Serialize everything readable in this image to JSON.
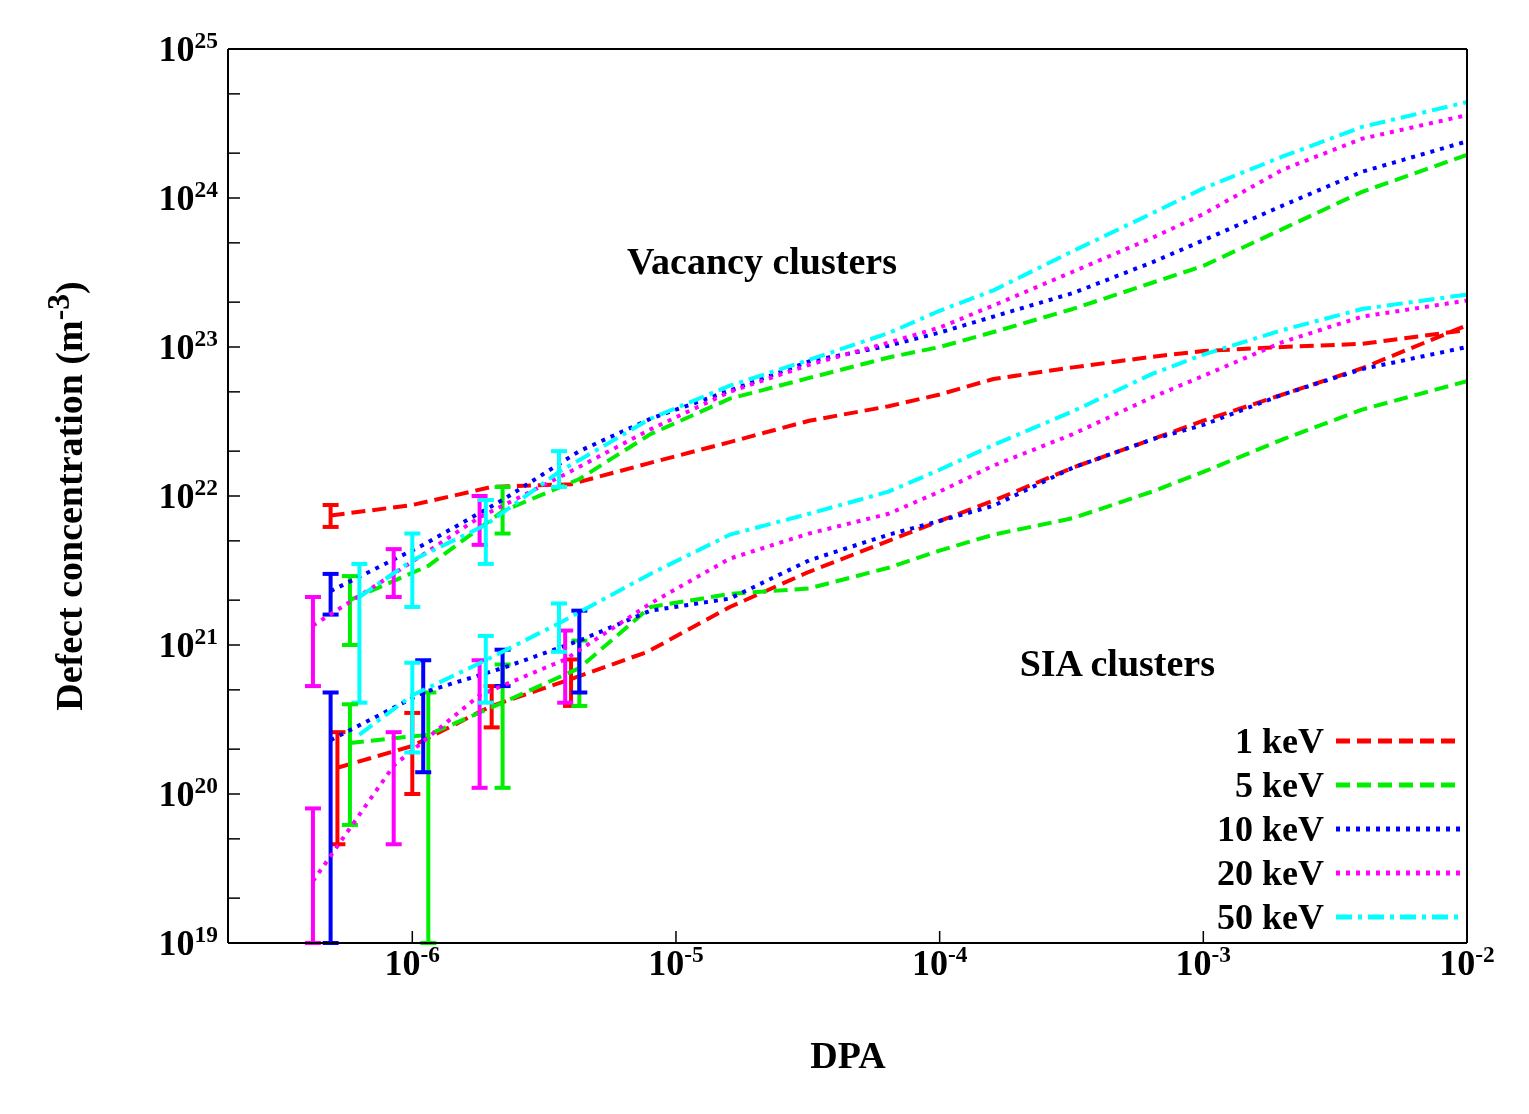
{
  "chart_data": {
    "type": "line",
    "xlabel": "DPA",
    "ylabel": "Defect concentration (m$^{-3}$)",
    "log": "xy",
    "grid": false,
    "legend": "bottom right",
    "xlim": [
      2e-07,
      0.01
    ],
    "xticks": [
      {
        "value": 1e-06,
        "label": "10$^{-6}$"
      },
      {
        "value": 1e-05,
        "label": "10$^{-5}$"
      },
      {
        "value": 0.0001,
        "label": "10$^{-4}$"
      },
      {
        "value": 0.001,
        "label": "10$^{-3}$"
      },
      {
        "value": 0.01,
        "label": "10$^{-2}$"
      }
    ],
    "ylim": [
      1e+19,
      1e+25
    ],
    "yticks": [
      {
        "value": 1e+19,
        "label": "10$^{19}$"
      },
      {
        "value": 2e+19,
        "label": null
      },
      {
        "value": 5e+19,
        "label": null
      },
      {
        "value": 1e+20,
        "label": "10$^{20}$"
      },
      {
        "value": 2e+20,
        "label": null
      },
      {
        "value": 5e+20,
        "label": null
      },
      {
        "value": 1e+21,
        "label": "10$^{21}$"
      },
      {
        "value": 2e+21,
        "label": null
      },
      {
        "value": 5e+21,
        "label": null
      },
      {
        "value": 1e+22,
        "label": "10$^{22}$"
      },
      {
        "value": 2e+22,
        "label": null
      },
      {
        "value": 5e+22,
        "label": null
      },
      {
        "value": 1e+23,
        "label": "10$^{23}$"
      },
      {
        "value": 2e+23,
        "label": null
      },
      {
        "value": 5e+23,
        "label": null
      },
      {
        "value": 1e+24,
        "label": "10$^{24}$"
      },
      {
        "value": 2e+24,
        "label": null
      },
      {
        "value": 5e+24,
        "label": null
      },
      {
        "value": 1e+25,
        "label": "10$^{25}$"
      }
    ],
    "annotations": [
      "Vacancy clusters",
      "SIA clusters"
    ],
    "series": [
      {
        "name": "1 keV",
        "color": "#ff0000",
        "line_style": "dashed",
        "x": [
          4.9e-07,
          1e-06,
          2e-06,
          4e-06,
          7.8e-06,
          1.6e-05,
          3.2e-05,
          6.4e-05,
          0.0001,
          0.00016,
          0.00032,
          0.00064,
          0.001,
          0.002,
          0.004,
          0.01
        ],
        "values": [
          7.4e+21,
          8.7e+21,
          1.15e+22,
          1.2e+22,
          1.65e+22,
          2.3e+22,
          3.2e+22,
          4e+22,
          4.8e+22,
          6.1e+22,
          7.3e+22,
          8.6e+22,
          9.4e+22,
          1e+23,
          1.05e+23,
          1.3e+23
        ],
        "errors": [
          [
            6.2e+21,
            8.7e+21
          ],
          null,
          null,
          null,
          null,
          null,
          null,
          null,
          null,
          null,
          null,
          null,
          null,
          null,
          null,
          null
        ]
      },
      {
        "name": "5 keV",
        "color": "#00ee00",
        "line_style": "dashed",
        "x": [
          5.8e-07,
          1.15e-06,
          2.2e-06,
          4.3e-06,
          8e-06,
          1.6e-05,
          3.2e-05,
          6.4e-05,
          0.0001,
          0.00016,
          0.00032,
          0.00064,
          0.001,
          0.002,
          0.004,
          0.01
        ],
        "values": [
          2e+21,
          3.4e+21,
          7.9e+21,
          1.3e+22,
          2.6e+22,
          4.5e+22,
          6.2e+22,
          8.5e+22,
          1e+23,
          1.26e+23,
          1.8e+23,
          2.7e+23,
          3.5e+23,
          6.2e+23,
          1.1e+24,
          1.95e+24
        ],
        "errors": [
          [
            1e+21,
            2.9e+21
          ],
          null,
          [
            5.6e+21,
            1.15e+22
          ],
          null,
          null,
          null,
          null,
          null,
          null,
          null,
          null,
          null,
          null,
          null,
          null,
          null
        ]
      },
      {
        "name": "10 keV",
        "color": "#0000ff",
        "line_style": "dotted",
        "x": [
          4.9e-07,
          1.1e-06,
          2.2e-06,
          4.3e-06,
          8e-06,
          1.6e-05,
          3.2e-05,
          6.4e-05,
          0.0001,
          0.00016,
          0.00032,
          0.00064,
          0.001,
          0.002,
          0.004,
          0.01
        ],
        "values": [
          2.3e+21,
          4.7e+21,
          9.4e+21,
          2e+22,
          3.3e+22,
          5.1e+22,
          8e+22,
          1.02e+23,
          1.25e+23,
          1.6e+23,
          2.3e+23,
          3.7e+23,
          5.2e+23,
          8.9e+23,
          1.5e+24,
          2.4e+24
        ],
        "errors": [
          [
            1.6e+21,
            3e+21
          ],
          null,
          null,
          null,
          null,
          null,
          null,
          null,
          null,
          null,
          null,
          null,
          null,
          null,
          null,
          null
        ]
      },
      {
        "name": "20 keV",
        "color": "#ff00ff",
        "line_style": "dotted",
        "x": [
          4.2e-07,
          8.5e-07,
          1.8e-06,
          3.8e-06,
          8e-06,
          1.6e-05,
          3.2e-05,
          6.4e-05,
          0.0001,
          0.00016,
          0.00032,
          0.00064,
          0.001,
          0.002,
          0.004,
          0.01
        ],
        "values": [
          1.35e+21,
          3e+21,
          7.2e+21,
          1.4e+22,
          2.8e+22,
          5e+22,
          7.6e+22,
          1.07e+23,
          1.35e+23,
          1.9e+23,
          3.2e+23,
          5.4e+23,
          7.8e+23,
          1.55e+24,
          2.5e+24,
          3.6e+24
        ],
        "errors": [
          [
            5.3e+20,
            2.1e+21
          ],
          [
            2.1e+21,
            4.4e+21
          ],
          [
            4.7e+21,
            1e+22
          ],
          null,
          null,
          null,
          null,
          null,
          null,
          null,
          null,
          null,
          null,
          null,
          null,
          null
        ]
      },
      {
        "name": "50 keV",
        "color": "#00ffff",
        "line_style": "dashdot",
        "x": [
          6.3e-07,
          1e-06,
          1.9e-06,
          3.6e-06,
          8e-06,
          1.6e-05,
          3.2e-05,
          6.4e-05,
          0.0001,
          0.00016,
          0.00032,
          0.00064,
          0.001,
          0.002,
          0.004,
          0.01
        ],
        "values": [
          2.1e+21,
          3.7e+21,
          6.4e+21,
          1.45e+22,
          3.3e+22,
          5.5e+22,
          8.2e+22,
          1.24e+23,
          1.75e+23,
          2.4e+23,
          4.4e+23,
          7.9e+23,
          1.16e+24,
          1.9e+24,
          3e+24,
          4.4e+24
        ],
        "errors": [
          [
            4.1e+20,
            3.5e+21
          ],
          [
            1.8e+21,
            5.6e+21
          ],
          [
            3.5e+21,
            9.4e+21
          ],
          [
            1.15e+22,
            2e+22
          ],
          null,
          null,
          null,
          null,
          null,
          null,
          null,
          null,
          null,
          null,
          null,
          null
        ]
      },
      {
        "color": "#ff0000",
        "line_style": "dashed",
        "x": [
          5.2e-07,
          1e-06,
          2e-06,
          4e-06,
          7.8e-06,
          1.6e-05,
          3.2e-05,
          6.4e-05,
          0.0001,
          0.00016,
          0.00032,
          0.00064,
          0.001,
          0.002,
          0.004,
          0.01
        ],
        "values": [
          1.5e+20,
          2.1e+20,
          3.9e+20,
          5.9e+20,
          9e+20,
          1.8e+21,
          3.1e+21,
          5e+21,
          6.8e+21,
          9.3e+21,
          1.55e+22,
          2.4e+22,
          3.2e+22,
          4.8e+22,
          7.2e+22,
          1.4e+23
        ],
        "errors": [
          [
            4.6e+19,
            2.6e+20
          ],
          [
            1e+20,
            3.5e+20
          ],
          [
            2.8e+20,
            5.3e+20
          ],
          [
            3.9e+20,
            8e+20
          ],
          null,
          null,
          null,
          null,
          null,
          null,
          null,
          null,
          null,
          null,
          null,
          null
        ]
      },
      {
        "color": "#00ee00",
        "line_style": "dashed",
        "x": [
          5.8e-07,
          1.15e-06,
          2.2e-06,
          4.3e-06,
          8e-06,
          1.6e-05,
          3.2e-05,
          6.4e-05,
          0.0001,
          0.00016,
          0.00032,
          0.00064,
          0.001,
          0.002,
          0.004,
          0.01
        ],
        "values": [
          2.2e+20,
          2.5e+20,
          4.1e+20,
          7e+20,
          1.8e+21,
          2.2e+21,
          2.4e+21,
          3.3e+21,
          4.3e+21,
          5.5e+21,
          7.1e+21,
          1.07e+22,
          1.45e+22,
          2.4e+22,
          3.8e+22,
          5.9e+22
        ],
        "errors": [
          [
            6.2e+19,
            4e+20
          ],
          [
            1e+19,
            4.8e+20
          ],
          [
            1.1e+20,
            7.4e+20
          ],
          [
            3.9e+20,
            1.07e+21
          ],
          null,
          null,
          null,
          null,
          null,
          null,
          null,
          null,
          null,
          null,
          null,
          null
        ]
      },
      {
        "color": "#0000ff",
        "line_style": "dotted",
        "x": [
          4.9e-07,
          1.1e-06,
          2.2e-06,
          4.3e-06,
          8e-06,
          1.6e-05,
          3.2e-05,
          6.4e-05,
          0.0001,
          0.00016,
          0.00032,
          0.00064,
          0.001,
          0.002,
          0.004,
          0.01
        ],
        "values": [
          2.3e+20,
          4.8e+20,
          7e+20,
          1.07e+21,
          1.7e+21,
          2.05e+21,
          3.7e+21,
          5.5e+21,
          6.8e+21,
          8.6e+21,
          1.55e+22,
          2.4e+22,
          3e+22,
          4.8e+22,
          7.1e+22,
          1e+23
        ],
        "errors": [
          [
            1e+19,
            4.8e+20
          ],
          [
            1.4e+20,
            7.9e+20
          ],
          [
            5.3e+20,
            9.3e+20
          ],
          [
            4.8e+20,
            1.7e+21
          ],
          null,
          null,
          null,
          null,
          null,
          null,
          null,
          null,
          null,
          null,
          null,
          null
        ]
      },
      {
        "color": "#ff00ff",
        "line_style": "dotted",
        "x": [
          4.2e-07,
          8.5e-07,
          1.8e-06,
          3.8e-06,
          8e-06,
          1.6e-05,
          3.2e-05,
          6.4e-05,
          0.0001,
          0.00016,
          0.00032,
          0.00064,
          0.001,
          0.002,
          0.004,
          0.01
        ],
        "values": [
          2.6e+19,
          1.55e+20,
          4.6e+20,
          8e+20,
          1.9e+21,
          3.8e+21,
          5.6e+21,
          7.6e+21,
          1.07e+22,
          1.6e+22,
          2.6e+22,
          4.6e+22,
          6.4e+22,
          1.08e+23,
          1.6e+23,
          2.05e+23
        ],
        "errors": [
          [
            1e+19,
            8e+19
          ],
          [
            4.6e+19,
            2.6e+20
          ],
          [
            1.1e+20,
            7.9e+20
          ],
          [
            4.1e+20,
            1.25e+21
          ],
          null,
          null,
          null,
          null,
          null,
          null,
          null,
          null,
          null,
          null,
          null,
          null
        ]
      },
      {
        "color": "#00ffff",
        "line_style": "dashdot",
        "x": [
          6.3e-07,
          1e-06,
          1.9e-06,
          3.6e-06,
          8e-06,
          1.6e-05,
          3.2e-05,
          6.4e-05,
          0.0001,
          0.00016,
          0.00032,
          0.00064,
          0.001,
          0.002,
          0.004,
          0.01
        ],
        "values": [
          2.5e+20,
          4.6e+20,
          7.9e+20,
          1.4e+21,
          3e+21,
          5.5e+21,
          7.6e+21,
          1.07e+22,
          1.5e+22,
          2.2e+22,
          3.7e+22,
          6.6e+22,
          8.9e+22,
          1.3e+23,
          1.8e+23,
          2.25e+23
        ],
        "errors": [
          null,
          [
            1.9e+20,
            7.6e+20
          ],
          [
            4.1e+20,
            1.15e+21
          ],
          [
            9e+20,
            1.9e+21
          ],
          null,
          null,
          null,
          null,
          null,
          null,
          null,
          null,
          null,
          null,
          null,
          null
        ]
      }
    ]
  }
}
